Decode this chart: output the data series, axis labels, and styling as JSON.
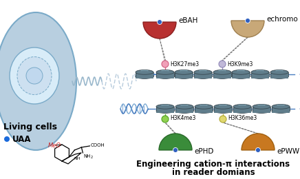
{
  "bg_color": "#ffffff",
  "cell_color": "#b8cfe0",
  "cell_edge_color": "#7aaac8",
  "cell_inner_color": "#cde0f0",
  "cell_nucleus_color": "#d8ecf8",
  "cell_dot_color": "#b0cce0",
  "nuc_top_color": "#607d8b",
  "nuc_mid_color": "#546e7a",
  "nuc_bot_color": "#455a64",
  "nuc_edge_color": "#37474f",
  "dna_color1": "#4a7fc1",
  "dna_color2": "#7baad4",
  "connect_color": "#5570b0",
  "spring_color": "#9ab8cc",
  "spring_dash_color": "#b8ccdd",
  "eBAH_color": "#b83030",
  "eBAH_edge": "#8a2020",
  "echromo_color": "#c8a878",
  "echromo_edge": "#a08050",
  "ePHD_color": "#3a8c3a",
  "ePHD_edge": "#2a6a2a",
  "ePWWP_color": "#c87820",
  "ePWWP_edge": "#a06010",
  "reader_dot": "#3060c0",
  "dot_pink": "#f0a0b8",
  "dot_pink_edge": "#d06080",
  "dot_lavender": "#c0b8d8",
  "dot_lavender_edge": "#9088b8",
  "dot_green": "#90d050",
  "dot_green_edge": "#50a020",
  "dot_yellow": "#e0d870",
  "dot_yellow_edge": "#b0a830",
  "uaa_dot_color": "#1a6adb",
  "meo_color": "#cc2222",
  "labels": {
    "living_cells": "Living cells",
    "uaa": "UAA",
    "eBAH": "eBAH",
    "echromo": "echromo",
    "H3K27me3": "H3K27me3",
    "H3K9me3": "H3K9me3",
    "H3K4me3": "H3K4me3",
    "H3K36me3": "H3K36me3",
    "ePHD": "ePHD",
    "ePWWP": "ePWWP",
    "bottom_line1": "Engineering cation-π interactions",
    "bottom_line2": "in reader domians"
  }
}
